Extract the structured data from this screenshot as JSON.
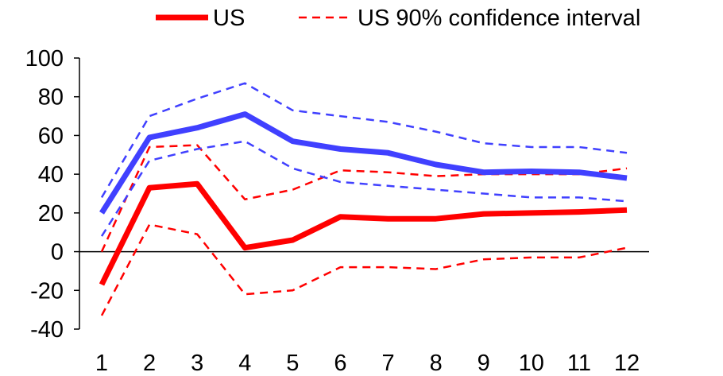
{
  "chart_data": {
    "type": "line",
    "title": "",
    "xlabel": "",
    "ylabel": "",
    "x": [
      1,
      2,
      3,
      4,
      5,
      6,
      7,
      8,
      9,
      10,
      11,
      12
    ],
    "ylim": [
      -40,
      100
    ],
    "yticks": [
      -40,
      -20,
      0,
      20,
      40,
      60,
      80,
      100
    ],
    "grid": false,
    "legend": {
      "placement": "top",
      "entries": [
        {
          "label": "US",
          "color": "#ff0000",
          "style": "solid"
        },
        {
          "label": "US 90% confidence interval",
          "color": "#ff0000",
          "style": "dashed"
        }
      ]
    },
    "series": [
      {
        "name": "US",
        "color": "#ff0000",
        "style": "solid",
        "values": [
          -17,
          33,
          35,
          2,
          6,
          18,
          17,
          17,
          19.5,
          20,
          20.5,
          21.5
        ]
      },
      {
        "color": "#ff0000",
        "style": "dashed",
        "values": [
          0,
          54,
          55,
          27,
          32,
          42,
          41,
          39,
          40,
          40,
          40,
          43
        ]
      },
      {
        "color": "#ff0000",
        "style": "dashed",
        "values": [
          -33,
          14,
          9,
          -22,
          -20,
          -8,
          -8,
          -9,
          -4,
          -3,
          -3,
          2
        ]
      },
      {
        "color": "#4040ff",
        "style": "solid",
        "values": [
          20,
          59,
          64,
          71,
          57,
          53,
          51,
          45,
          41,
          41.5,
          41,
          38
        ]
      },
      {
        "color": "#4040ff",
        "style": "dashed",
        "values": [
          28,
          70,
          79,
          87,
          73,
          70,
          67,
          62,
          56,
          54,
          54,
          51
        ]
      },
      {
        "color": "#4040ff",
        "style": "dashed",
        "values": [
          8,
          47,
          53,
          57,
          43,
          36,
          34,
          32,
          30,
          28,
          28,
          26
        ]
      }
    ]
  }
}
